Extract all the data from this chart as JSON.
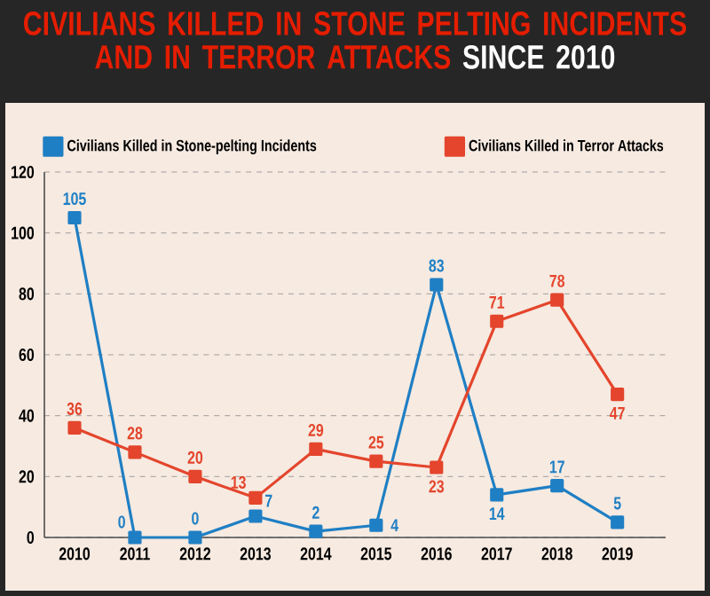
{
  "chart_data": {
    "type": "line",
    "title": "CIVILIANS KILLED IN STONE PELTING INCIDENTS AND IN TERROR ATTACKS",
    "subtitle": "SINCE 2010",
    "categories": [
      "2010",
      "2011",
      "2012",
      "2013",
      "2014",
      "2015",
      "2016",
      "2017",
      "2018",
      "2019"
    ],
    "series": [
      {
        "name": "Civilians Killed in Stone-pelting Incidents",
        "color": "#1f7fc4",
        "values": [
          105,
          0,
          0,
          7,
          2,
          4,
          83,
          14,
          17,
          5
        ]
      },
      {
        "name": "Civilians Killed in Terror Attacks",
        "color": "#e4452c",
        "values": [
          36,
          28,
          20,
          13,
          29,
          25,
          23,
          71,
          78,
          47
        ]
      }
    ],
    "ylim": [
      0,
      120
    ],
    "yticks": [
      0,
      20,
      40,
      60,
      80,
      100,
      120
    ],
    "grid": "y",
    "legend": "top",
    "marker": "square",
    "line_style": "solid",
    "data_labels": true
  }
}
